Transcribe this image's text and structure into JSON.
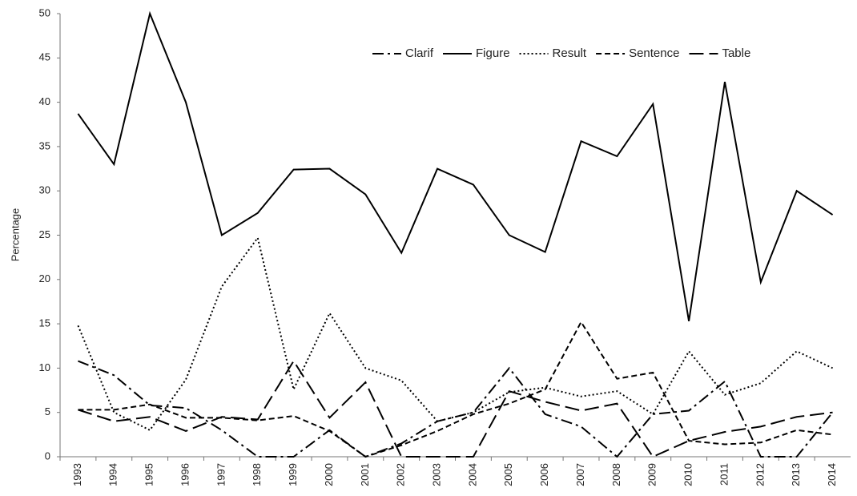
{
  "chart_data": {
    "type": "line",
    "y_label": "Percentage",
    "categories": [
      "1993",
      "1994",
      "1995",
      "1996",
      "1997",
      "1998",
      "1999",
      "2000",
      "2001",
      "2002",
      "2003",
      "2004",
      "2005",
      "2006",
      "2007",
      "2008",
      "2009",
      "2010",
      "2011",
      "2012",
      "2013",
      "2014"
    ],
    "ylim": [
      0,
      50
    ],
    "yticks": [
      0,
      5,
      10,
      15,
      20,
      25,
      30,
      35,
      40,
      45,
      50
    ],
    "grid": false,
    "legend": "top-right",
    "series": [
      {
        "name": "Clarif",
        "color": "#000000",
        "dash": "14,5,3,5",
        "values": [
          10.8,
          9.2,
          5.8,
          5.5,
          3,
          0,
          0,
          3,
          0,
          1.5,
          4,
          5,
          10,
          4.8,
          3.4,
          0,
          4.8,
          5.2,
          8.5,
          0,
          0,
          5
        ]
      },
      {
        "name": "Figure",
        "color": "#000000",
        "dash": "none",
        "values": [
          38.7,
          33,
          50,
          40,
          25,
          27.5,
          32.4,
          32.5,
          29.6,
          23,
          32.5,
          30.7,
          25,
          23.1,
          35.6,
          33.9,
          39.8,
          15.3,
          42.3,
          19.7,
          30,
          27.3
        ]
      },
      {
        "name": "Result",
        "color": "#000000",
        "dash": "2,3",
        "values": [
          14.8,
          5,
          3,
          8.7,
          19.2,
          24.7,
          7.6,
          16.2,
          10,
          8.6,
          4,
          5,
          7.3,
          7.8,
          6.8,
          7.4,
          4.8,
          11.9,
          7,
          8.3,
          11.9,
          10
        ]
      },
      {
        "name": "Sentence",
        "color": "#000000",
        "dash": "7,4",
        "values": [
          5.3,
          5.3,
          5.9,
          4.4,
          4.4,
          4.1,
          4.6,
          2.9,
          0,
          1.3,
          2.9,
          4.8,
          6,
          7.6,
          15.2,
          8.8,
          9.5,
          1.8,
          1.4,
          1.6,
          3,
          2.5
        ]
      },
      {
        "name": "Table",
        "color": "#000000",
        "dash": "18,7",
        "values": [
          5.3,
          4,
          4.5,
          2.9,
          4.5,
          4.2,
          10.8,
          4.4,
          8.4,
          0,
          0,
          0,
          7.4,
          6.2,
          5.2,
          6,
          0,
          1.8,
          2.8,
          3.4,
          4.5,
          5
        ]
      }
    ]
  }
}
